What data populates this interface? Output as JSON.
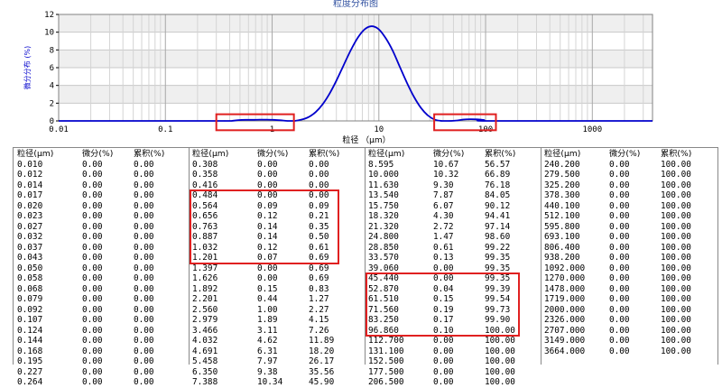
{
  "chart_data": {
    "type": "line",
    "title": "粒度分布图",
    "xlabel": "粒径 （μm）",
    "ylabel": "微分分布 (%)",
    "x_scale": "log",
    "xlim": [
      0.01,
      3664
    ],
    "ylim": [
      0,
      12
    ],
    "x_ticks": [
      "0.01",
      "0.1",
      "1",
      "10",
      "100",
      "1000"
    ],
    "y_ticks": [
      "0",
      "2",
      "4",
      "6",
      "8",
      "10",
      "12"
    ],
    "grid": true,
    "line_color": "#0000cc",
    "series": [
      {
        "x": [
          0.308,
          0.358,
          0.416,
          0.484,
          0.564,
          0.656,
          0.763,
          0.887,
          1.032,
          1.201,
          1.397,
          1.626,
          1.892,
          2.201,
          2.56,
          2.979,
          3.466,
          4.032,
          4.691,
          5.458,
          6.35,
          7.388,
          8.595,
          10.0,
          11.63,
          13.54,
          15.75,
          18.32,
          21.32,
          24.8,
          28.85,
          33.57,
          39.06,
          45.44,
          52.87,
          61.51,
          71.56,
          83.25,
          96.86,
          112.7
        ],
        "y": [
          0,
          0,
          0,
          0.09,
          0.12,
          0.12,
          0.14,
          0.14,
          0.12,
          0.07,
          0.0,
          0.0,
          0.15,
          0.44,
          1.0,
          1.89,
          3.11,
          4.62,
          6.31,
          7.97,
          9.38,
          10.34,
          10.67,
          10.32,
          9.3,
          7.87,
          6.07,
          4.3,
          2.72,
          1.47,
          0.61,
          0.13,
          0.0,
          0.0,
          0.04,
          0.15,
          0.19,
          0.17,
          0.1,
          0.0
        ]
      }
    ]
  },
  "table": {
    "headers": [
      "粒径(μm)",
      "微分(%)",
      "累积(%)"
    ],
    "columns": [
      [
        [
          "0.010",
          "0.00",
          "0.00"
        ],
        [
          "0.012",
          "0.00",
          "0.00"
        ],
        [
          "0.014",
          "0.00",
          "0.00"
        ],
        [
          "0.017",
          "0.00",
          "0.00"
        ],
        [
          "0.020",
          "0.00",
          "0.00"
        ],
        [
          "0.023",
          "0.00",
          "0.00"
        ],
        [
          "0.027",
          "0.00",
          "0.00"
        ],
        [
          "0.032",
          "0.00",
          "0.00"
        ],
        [
          "0.037",
          "0.00",
          "0.00"
        ],
        [
          "0.043",
          "0.00",
          "0.00"
        ],
        [
          "0.050",
          "0.00",
          "0.00"
        ],
        [
          "0.058",
          "0.00",
          "0.00"
        ],
        [
          "0.068",
          "0.00",
          "0.00"
        ],
        [
          "0.079",
          "0.00",
          "0.00"
        ],
        [
          "0.092",
          "0.00",
          "0.00"
        ],
        [
          "0.107",
          "0.00",
          "0.00"
        ],
        [
          "0.124",
          "0.00",
          "0.00"
        ],
        [
          "0.144",
          "0.00",
          "0.00"
        ],
        [
          "0.168",
          "0.00",
          "0.00"
        ],
        [
          "0.195",
          "0.00",
          "0.00"
        ],
        [
          "0.227",
          "0.00",
          "0.00"
        ],
        [
          "0.264",
          "0.00",
          "0.00"
        ]
      ],
      [
        [
          "0.308",
          "0.00",
          "0.00"
        ],
        [
          "0.358",
          "0.00",
          "0.00"
        ],
        [
          "0.416",
          "0.00",
          "0.00"
        ],
        [
          "0.484",
          "0.00",
          "0.00"
        ],
        [
          "0.564",
          "0.09",
          "0.09"
        ],
        [
          "0.656",
          "0.12",
          "0.21"
        ],
        [
          "0.763",
          "0.14",
          "0.35"
        ],
        [
          "0.887",
          "0.14",
          "0.50"
        ],
        [
          "1.032",
          "0.12",
          "0.61"
        ],
        [
          "1.201",
          "0.07",
          "0.69"
        ],
        [
          "1.397",
          "0.00",
          "0.69"
        ],
        [
          "1.626",
          "0.00",
          "0.69"
        ],
        [
          "1.892",
          "0.15",
          "0.83"
        ],
        [
          "2.201",
          "0.44",
          "1.27"
        ],
        [
          "2.560",
          "1.00",
          "2.27"
        ],
        [
          "2.979",
          "1.89",
          "4.15"
        ],
        [
          "3.466",
          "3.11",
          "7.26"
        ],
        [
          "4.032",
          "4.62",
          "11.89"
        ],
        [
          "4.691",
          "6.31",
          "18.20"
        ],
        [
          "5.458",
          "7.97",
          "26.17"
        ],
        [
          "6.350",
          "9.38",
          "35.56"
        ],
        [
          "7.388",
          "10.34",
          "45.90"
        ]
      ],
      [
        [
          "8.595",
          "10.67",
          "56.57"
        ],
        [
          "10.000",
          "10.32",
          "66.89"
        ],
        [
          "11.630",
          "9.30",
          "76.18"
        ],
        [
          "13.540",
          "7.87",
          "84.05"
        ],
        [
          "15.750",
          "6.07",
          "90.12"
        ],
        [
          "18.320",
          "4.30",
          "94.41"
        ],
        [
          "21.320",
          "2.72",
          "97.14"
        ],
        [
          "24.800",
          "1.47",
          "98.60"
        ],
        [
          "28.850",
          "0.61",
          "99.22"
        ],
        [
          "33.570",
          "0.13",
          "99.35"
        ],
        [
          "39.060",
          "0.00",
          "99.35"
        ],
        [
          "45.440",
          "0.00",
          "99.35"
        ],
        [
          "52.870",
          "0.04",
          "99.39"
        ],
        [
          "61.510",
          "0.15",
          "99.54"
        ],
        [
          "71.560",
          "0.19",
          "99.73"
        ],
        [
          "83.250",
          "0.17",
          "99.90"
        ],
        [
          "96.860",
          "0.10",
          "100.00"
        ],
        [
          "112.700",
          "0.00",
          "100.00"
        ],
        [
          "131.100",
          "0.00",
          "100.00"
        ],
        [
          "152.500",
          "0.00",
          "100.00"
        ],
        [
          "177.500",
          "0.00",
          "100.00"
        ],
        [
          "206.500",
          "0.00",
          "100.00"
        ]
      ],
      [
        [
          "240.200",
          "0.00",
          "100.00"
        ],
        [
          "279.500",
          "0.00",
          "100.00"
        ],
        [
          "325.200",
          "0.00",
          "100.00"
        ],
        [
          "378.300",
          "0.00",
          "100.00"
        ],
        [
          "440.100",
          "0.00",
          "100.00"
        ],
        [
          "512.100",
          "0.00",
          "100.00"
        ],
        [
          "595.800",
          "0.00",
          "100.00"
        ],
        [
          "693.100",
          "0.00",
          "100.00"
        ],
        [
          "806.400",
          "0.00",
          "100.00"
        ],
        [
          "938.200",
          "0.00",
          "100.00"
        ],
        [
          "1092.000",
          "0.00",
          "100.00"
        ],
        [
          "1270.000",
          "0.00",
          "100.00"
        ],
        [
          "1478.000",
          "0.00",
          "100.00"
        ],
        [
          "1719.000",
          "0.00",
          "100.00"
        ],
        [
          "2000.000",
          "0.00",
          "100.00"
        ],
        [
          "2326.000",
          "0.00",
          "100.00"
        ],
        [
          "2707.000",
          "0.00",
          "100.00"
        ],
        [
          "3149.000",
          "0.00",
          "100.00"
        ],
        [
          "3664.000",
          "0.00",
          "100.00"
        ]
      ]
    ]
  },
  "highlights": [
    {
      "where": "chart",
      "x_range": [
        0.3,
        1.6
      ]
    },
    {
      "where": "chart",
      "x_range": [
        33,
        125
      ]
    },
    {
      "where": "table",
      "column": 1,
      "rows": [
        3,
        9
      ]
    },
    {
      "where": "table",
      "column": 2,
      "rows": [
        11,
        16
      ]
    }
  ]
}
